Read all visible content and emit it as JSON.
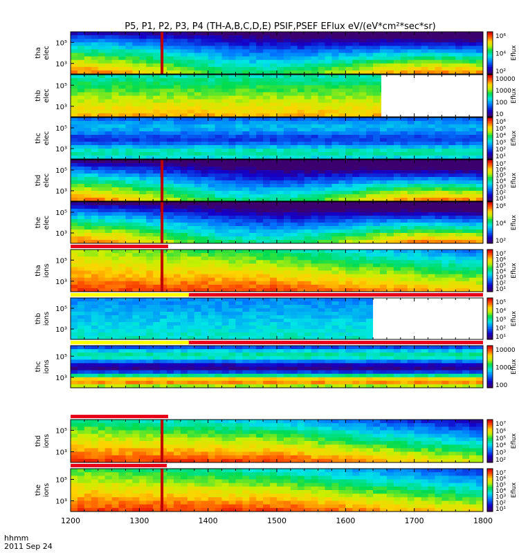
{
  "chart_data": {
    "type": "heatmap",
    "title": "P5, P1, P2, P3, P4 (TH-A,B,C,D,E) PSIF,PSEF EFlux eV/(eV*cm²*sec*sr)",
    "x_ticks": [
      "1200",
      "1300",
      "1400",
      "1500",
      "1600",
      "1700",
      "1800"
    ],
    "xlim": [
      1200,
      1800
    ],
    "time_label": "hhmm",
    "date_label": "2011 Sep 24",
    "y_scale": "log",
    "colorscale": "rainbow (purple-blue-cyan-green-yellow-red)",
    "colorbar_label": "Eflux",
    "panels": [
      {
        "id": "tha-elec",
        "ylabel_1": "tha",
        "ylabel_2": "elec",
        "y_ticks": [
          "10⁵",
          "10³"
        ],
        "cbar_ticks": [
          "10⁶",
          "10⁴",
          "10²"
        ],
        "data_end": 1800,
        "peak": 0.85,
        "valley": 0.12,
        "spike": 1333,
        "mode": "elec"
      },
      {
        "id": "thb-elec",
        "ylabel_1": "thb",
        "ylabel_2": "elec",
        "y_ticks": [
          "10⁵",
          "10³"
        ],
        "cbar_ticks": [
          "10000",
          "1000",
          "100",
          "10"
        ],
        "data_end": 1652,
        "peak": 0.8,
        "valley": 0.25,
        "spike": null,
        "mode": "flat"
      },
      {
        "id": "thc-elec",
        "ylabel_1": "thc",
        "ylabel_2": "elec",
        "y_ticks": [
          "10⁵",
          "10³"
        ],
        "cbar_ticks": [
          "10⁶",
          "10⁵",
          "10⁴",
          "10³",
          "10²",
          "10¹"
        ],
        "data_end": 1800,
        "peak": 0.5,
        "valley": 0.2,
        "spike": null,
        "mode": "bands"
      },
      {
        "id": "thd-elec",
        "ylabel_1": "thd",
        "ylabel_2": "elec",
        "y_ticks": [
          "10⁵",
          "10³"
        ],
        "cbar_ticks": [
          "10⁷",
          "10⁶",
          "10⁵",
          "10⁴",
          "10³",
          "10²",
          "10¹"
        ],
        "data_end": 1800,
        "peak": 0.85,
        "valley": 0.02,
        "spike": 1333,
        "mode": "elec"
      },
      {
        "id": "the-elec",
        "ylabel_1": "the",
        "ylabel_2": "elec",
        "y_ticks": [
          "10⁵",
          "10³"
        ],
        "cbar_ticks": [
          "10⁶",
          "10⁴",
          "10²"
        ],
        "data_end": 1800,
        "peak": 0.85,
        "valley": 0.05,
        "spike": 1333,
        "mode": "elec"
      },
      {
        "id": "tha-ions",
        "ylabel_1": "tha",
        "ylabel_2": "ions",
        "y_ticks": [
          "10⁵",
          "10³"
        ],
        "cbar_ticks": [
          "10⁷",
          "10⁶",
          "10⁵",
          "10⁴",
          "10³",
          "10²",
          "10¹"
        ],
        "data_end": 1800,
        "peak": 0.92,
        "valley": 0.35,
        "spike": 1333,
        "mode": "ions"
      },
      {
        "id": "thb-ions",
        "ylabel_1": "thb",
        "ylabel_2": "ions",
        "y_ticks": [
          "10⁵",
          "10³"
        ],
        "cbar_ticks": [
          "10⁵",
          "10⁴",
          "10³",
          "10²",
          "10¹"
        ],
        "data_end": 1640,
        "peak": 0.45,
        "valley": 0.2,
        "spike": null,
        "mode": "flat"
      },
      {
        "id": "thc-ions",
        "ylabel_1": "thc",
        "ylabel_2": "ions",
        "y_ticks": [
          "10⁵",
          "10³"
        ],
        "cbar_ticks": [
          "10000",
          "1000",
          "100"
        ],
        "data_end": 1800,
        "peak": 0.9,
        "valley": 0.05,
        "spike": null,
        "mode": "bands"
      },
      {
        "id": "thd-ions",
        "ylabel_1": "thd",
        "ylabel_2": "ions",
        "y_ticks": [
          "10⁵",
          "10³"
        ],
        "cbar_ticks": [
          "10⁷",
          "10⁶",
          "10⁵",
          "10⁴",
          "10³",
          "10²"
        ],
        "data_end": 1800,
        "peak": 0.92,
        "valley": 0.05,
        "spike": 1333,
        "mode": "ions"
      },
      {
        "id": "the-ions",
        "ylabel_1": "the",
        "ylabel_2": "ions",
        "y_ticks": [
          "10⁵",
          "10³"
        ],
        "cbar_ticks": [
          "10⁷",
          "10⁶",
          "10⁵",
          "10⁴",
          "10³",
          "10²",
          "10¹"
        ],
        "data_end": 1800,
        "peak": 0.92,
        "valley": 0.2,
        "spike": 1333,
        "mode": "ions"
      }
    ],
    "bar_strips": [
      {
        "after_panel": "the-elec",
        "segments": [
          {
            "from": 1200,
            "to": 1342,
            "color": "#e8001a"
          }
        ]
      },
      {
        "after_panel": "tha-ions",
        "segments": [
          {
            "from": 1200,
            "to": 1372,
            "color": "#ffff00"
          },
          {
            "from": 1372,
            "to": 1800,
            "color": "#e8001a"
          }
        ]
      },
      {
        "after_panel": "thb-ions",
        "segments": [
          {
            "from": 1200,
            "to": 1372,
            "color": "#ffff00"
          },
          {
            "from": 1372,
            "to": 1800,
            "color": "#e8001a"
          }
        ]
      },
      {
        "after_panel": "thc-ions",
        "segments": [
          {
            "from": 1200,
            "to": 1342,
            "color": "#e8001a"
          }
        ]
      },
      {
        "after_panel": "thd-ions",
        "segments": [
          {
            "from": 1200,
            "to": 1340,
            "color": "#e8001a"
          }
        ]
      }
    ]
  }
}
